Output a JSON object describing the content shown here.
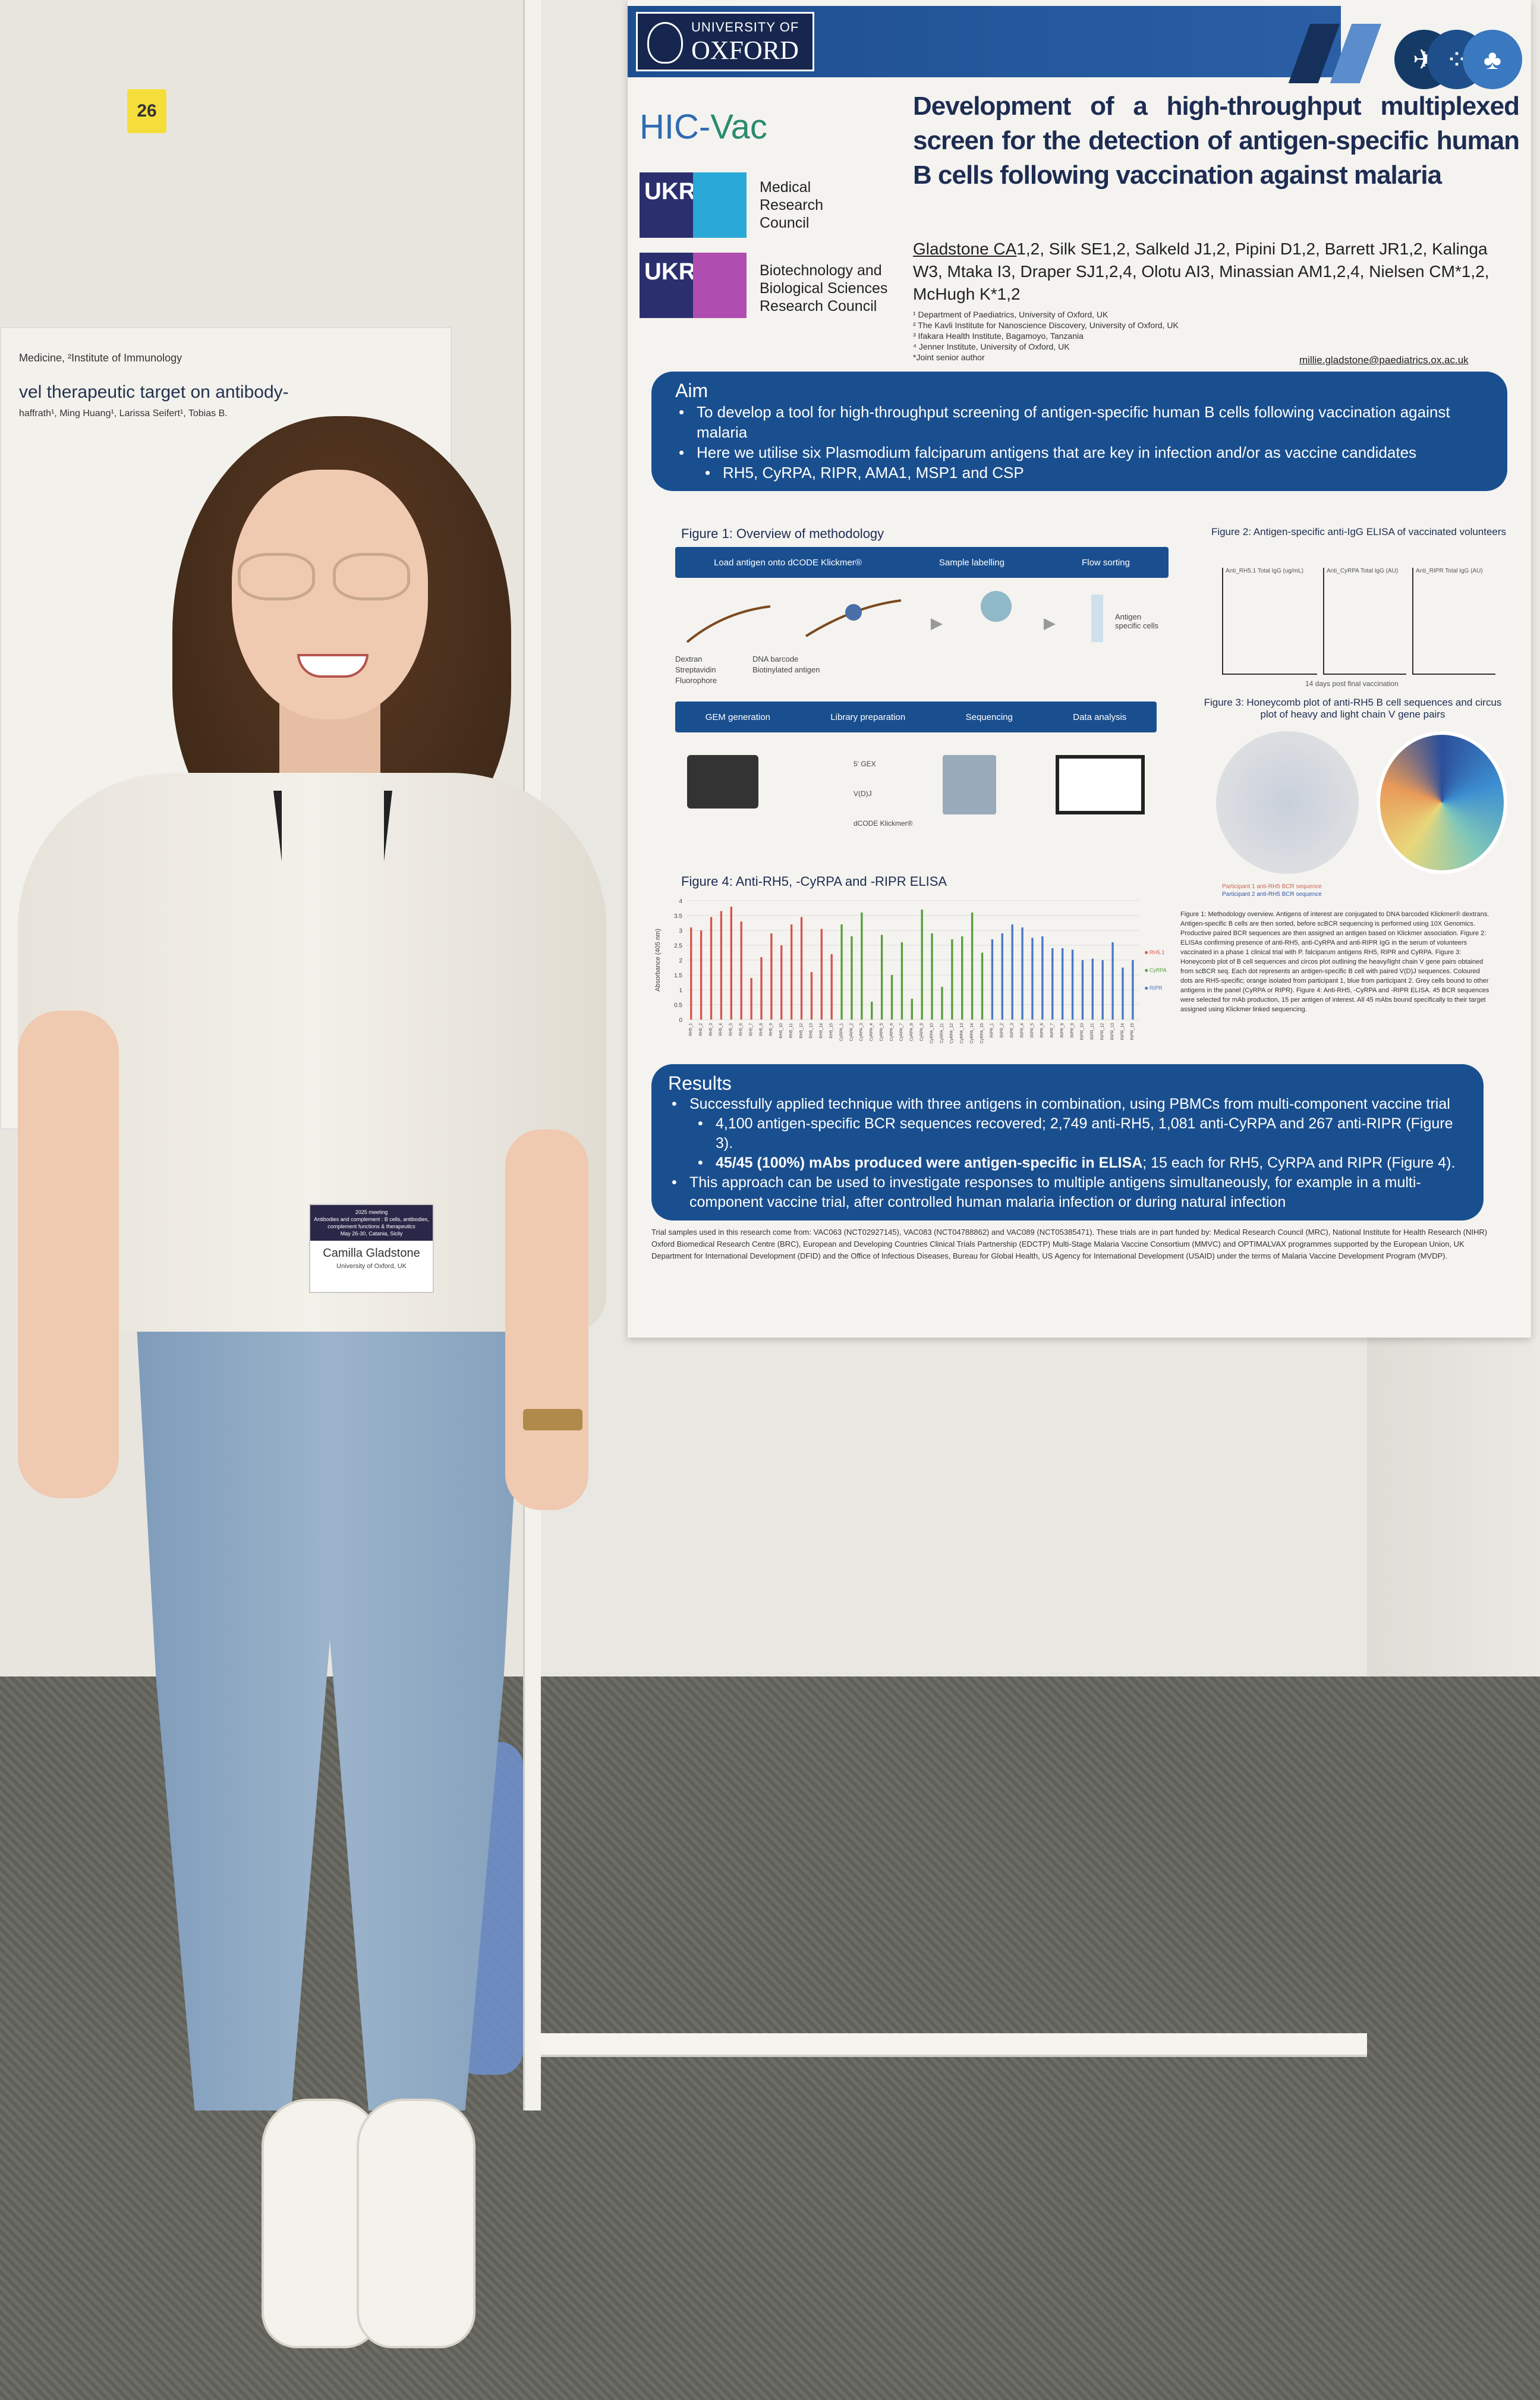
{
  "booth_number": "26",
  "left_poster": {
    "header": "Medicine, ²Institute of Immunology",
    "title_fragment": "vel therapeutic target on antibody-",
    "authors_fragment": "haffrath¹, Ming Huang¹, Larissa Seifert¹, Tobias B."
  },
  "poster": {
    "logos": {
      "oxford_line1": "UNIVERSITY OF",
      "oxford_line2": "OXFORD",
      "hicvac_a": "HIC-",
      "hicvac_b": "Vac",
      "mrc": "Medical Research Council",
      "bbsrc": "Biotechnology and Biological Sciences Research Council",
      "ukri": "UKRI"
    },
    "header_icons": [
      "mosquito-icon",
      "parasite-cells-icon",
      "antibody-icon"
    ],
    "title": "Development of a high-throughput multiplexed screen for the detection of antigen-specific human B cells following vaccination against malaria",
    "presenting_author": "Gladstone CA",
    "authors": "1,2, Silk SE1,2, Salkeld J1,2, Pipini D1,2, Barrett JR1,2, Kalinga W3, Mtaka I3, Draper SJ1,2,4, Olotu AI3, Minassian AM1,2,4, Nielsen CM*1,2, McHugh K*1,2",
    "affiliations": [
      "¹ Department of Paediatrics, University of Oxford, UK",
      "² The Kavli Institute for Nanoscience Discovery, University of Oxford, UK",
      "³ Ifakara Health Institute, Bagamoyo, Tanzania",
      "⁴ Jenner Institute, University of Oxford, UK",
      "*Joint senior author"
    ],
    "email": "millie.gladstone@paediatrics.ox.ac.uk",
    "aim": {
      "heading": "Aim",
      "bullets": [
        "To develop a tool for high-throughput screening of antigen-specific human B cells following vaccination against malaria",
        "Here we utilise six Plasmodium falciparum antigens that are key in infection and/or as vaccine candidates"
      ],
      "sub": "RH5, CyRPA, RIPR, AMA1, MSP1 and CSP"
    },
    "fig1": {
      "title": "Figure 1: Overview of methodology",
      "steps_top": [
        "Load antigen onto dCODE Klickmer®",
        "Sample labelling",
        "Flow sorting"
      ],
      "steps_bottom": [
        "GEM generation",
        "Library preparation",
        "Sequencing",
        "Data analysis"
      ],
      "legend": [
        "Dextran",
        "Streptavidin",
        "Fluorophore",
        "DNA barcode",
        "Biotinylated antigen"
      ],
      "labels": [
        "Antigen specific cells",
        "5' GEX",
        "V(D)J",
        "dCODE Klickmer®"
      ]
    },
    "fig2": {
      "title": "Figure 2: Antigen-specific anti-IgG ELISA of vaccinated volunteers",
      "ylabels": [
        "Anti_RH5.1 Total IgG (ug/mL)",
        "Anti_CyRPA Total IgG (AU)",
        "Anti_RIPR Total IgG (AU)"
      ],
      "xlabel": "14 days post final vaccination"
    },
    "fig3": {
      "title": "Figure 3: Honeycomb plot of anti-RH5 B cell sequences and circus plot of heavy and light chain V gene pairs",
      "legend": [
        "Participant 1 anti-RH5 BCR sequence",
        "Participant 2 anti-RH5 BCR sequence"
      ]
    },
    "fig4_title": "Figure 4: Anti-RH5, -CyRPA and -RIPR ELISA",
    "captions": "Figure 1: Methodology overview. Antigens of interest are conjugated to DNA barcoded Klickmer® dextrans. Antigen-specific B cells are then sorted, before scBCR sequencing is performed using 10X Genomics. Productive paired BCR sequences are then assigned an antigen based on Klickmer association. Figure 2: ELISAs confirming presence of anti-RH5, anti-CyRPA and anti-RIPR IgG in the serum of volunteers vaccinated in a phase 1 clinical trial with P. falciparum antigens RH5, RIPR and CyRPA. Figure 3: Honeycomb plot of B cell sequences and circos plot outlining the heavy/light chain V gene pairs obtained from scBCR seq. Each dot represents an antigen-specific B cell with paired V(D)J sequences. Coloured dots are RH5-specific; orange isolated from participant 1, blue from participant 2. Grey cells bound to other antigens in the panel (CyRPA or RIPR). Figure 4: Anti-RH5, -CyRPA and -RIPR ELISA. 45 BCR sequences were selected for mAb production, 15 per antigen of interest. All 45 mAbs bound specifically to their target assigned using Klickmer linked sequencing.",
    "results": {
      "heading": "Results",
      "bullets": [
        "Successfully applied technique with three antigens in combination, using PBMCs from multi-component vaccine trial",
        "4,100 antigen-specific BCR sequences recovered; 2,749 anti-RH5, 1,081 anti-CyRPA and 267 anti-RIPR (Figure 3).",
        "45/45 (100%) mAbs produced were antigen-specific in ELISA",
        "; 15 each for RH5, CyRPA and RIPR (Figure 4).",
        "This approach can be used to investigate responses to multiple antigens simultaneously, for example in a multi-component vaccine trial, after controlled human malaria infection or during natural infection"
      ]
    },
    "footer": "Trial samples used in this research come from: VAC063 (NCT02927145), VAC083 (NCT04788862) and VAC089 (NCT05385471). These trials are in part funded by: Medical Research Council (MRC), National Institute for Health Research (NIHR) Oxford Biomedical Research Centre (BRC), European and Developing Countries Clinical Trials Partnership (EDCTP) Multi-Stage Malaria Vaccine Consortium (MMVC) and OPTIMALVAX programmes supported by the European Union, UK Department for International Development (DFID) and the Office of Infectious Diseases, Bureau for Global Health, US Agency for International Development (USAID) under the terms of Malaria Vaccine Development Program (MVDP)."
  },
  "badge": {
    "meeting": "2025 meeting",
    "topic": "Antibodies and complement : B cells, antibodies, complement functions & therapeutics",
    "dates": "May 26-30, Catania, Sicily",
    "name": "Camilla Gladstone",
    "institution": "University of Oxford, UK"
  },
  "colors": {
    "poster_blue": "#1a4f8f",
    "rh5": "#d9534f",
    "cyrpa": "#5a9e3c",
    "ripr": "#4a78c8"
  },
  "chart_data": {
    "type": "bar",
    "title": "Figure 4: Anti-RH5, -CyRPA and -RIPR ELISA",
    "ylabel": "Absorbance (405 nm)",
    "ylim": [
      0,
      4
    ],
    "yticks": [
      0,
      0.5,
      1,
      1.5,
      2,
      2.5,
      3,
      3.5,
      4
    ],
    "grid": true,
    "legend_placement": "right",
    "series": [
      {
        "name": "RH5.1",
        "categories": [
          "RH5_1",
          "RH5_2",
          "RH5_3",
          "RH5_4",
          "RH5_5",
          "RH5_6",
          "RH5_7",
          "RH5_8",
          "RH5_9",
          "RH5_10",
          "RH5_11",
          "RH5_12",
          "RH5_13",
          "RH5_14",
          "RH5_15"
        ],
        "values": [
          3.1,
          3.0,
          3.45,
          3.65,
          3.8,
          3.3,
          1.4,
          2.1,
          2.9,
          2.5,
          3.2,
          3.45,
          1.6,
          3.05,
          2.2
        ]
      },
      {
        "name": "CyRPA",
        "categories": [
          "CyRPA_1",
          "CyRPA_2",
          "CyRPA_3",
          "CyRPA_4",
          "CyRPA_5",
          "CyRPA_6",
          "CyRPA_7",
          "CyRPA_8",
          "CyRPA_9",
          "CyRPA_10",
          "CyRPA_11",
          "CyRPA_12",
          "CyRPA_13",
          "CyRPA_14",
          "CyRPA_15"
        ],
        "values": [
          3.2,
          2.8,
          3.6,
          0.6,
          2.85,
          1.5,
          2.6,
          0.7,
          3.7,
          2.9,
          1.1,
          2.7,
          2.8,
          3.6,
          2.25
        ]
      },
      {
        "name": "RIPR",
        "categories": [
          "RIPR_1",
          "RIPR_2",
          "RIPR_3",
          "RIPR_4",
          "RIPR_5",
          "RIPR_6",
          "RIPR_7",
          "RIPR_8",
          "RIPR_9",
          "RIPR_10",
          "RIPR_11",
          "RIPR_12",
          "RIPR_13",
          "RIPR_14",
          "RIPR_15"
        ],
        "values": [
          2.7,
          2.9,
          3.2,
          3.1,
          2.75,
          2.8,
          2.4,
          2.4,
          2.35,
          2.0,
          2.05,
          2.0,
          2.6,
          1.75,
          2.0
        ]
      }
    ]
  }
}
